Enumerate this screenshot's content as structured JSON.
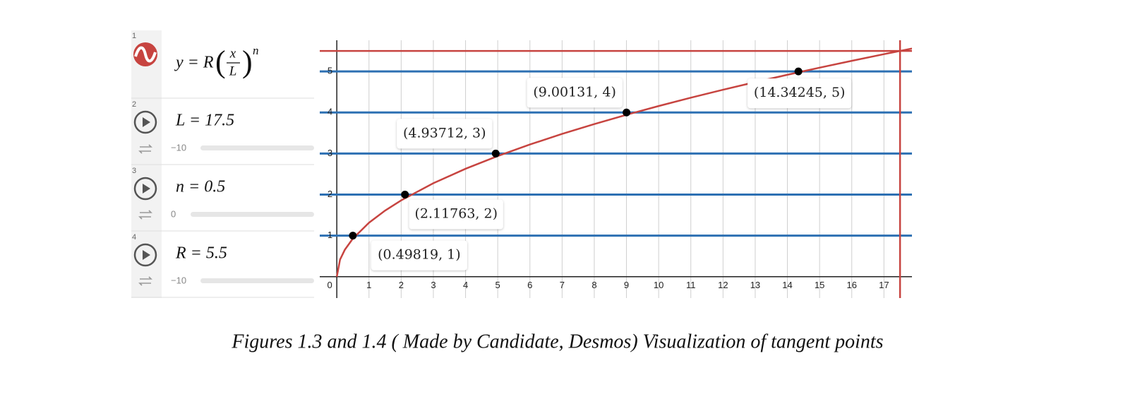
{
  "sidebar": {
    "expressions": [
      {
        "number": "1",
        "lhs": "y = R",
        "open": "(",
        "numerator": "x",
        "denominator": "L",
        "close": ")",
        "exponent": "n"
      },
      {
        "number": "2",
        "text": "L = 17.5",
        "slider_min": "−10"
      },
      {
        "number": "3",
        "text": "n = 0.5",
        "slider_min": "0"
      },
      {
        "number": "4",
        "text": "R = 5.5",
        "slider_min": "−10"
      }
    ]
  },
  "chart_data": {
    "type": "line",
    "xlim": [
      -0.53,
      17.87
    ],
    "ylim": [
      -0.52,
      5.76
    ],
    "xticks": [
      0,
      1,
      2,
      3,
      4,
      5,
      6,
      7,
      8,
      9,
      10,
      11,
      12,
      13,
      14,
      15,
      16,
      17
    ],
    "yticks": [
      1,
      2,
      3,
      4,
      5
    ],
    "grid": true,
    "series": [
      {
        "color": "#c74440",
        "x": [
          0,
          0.1,
          0.25,
          0.5,
          1,
          1.5,
          2,
          3,
          4,
          5,
          6,
          7,
          8,
          9,
          10,
          11,
          12,
          13,
          14,
          15,
          16,
          17,
          17.87
        ],
        "values": [
          0,
          0.4158,
          0.6574,
          0.9297,
          1.3148,
          1.6103,
          1.8594,
          2.2773,
          2.6296,
          2.94,
          3.2206,
          3.4786,
          3.7188,
          3.9444,
          4.1578,
          4.3607,
          4.5546,
          4.7406,
          4.9195,
          5.0922,
          5.2592,
          5.4209,
          5.558
        ]
      }
    ],
    "hlines": {
      "color": "#2d70b3",
      "values": [
        1,
        2,
        3,
        4,
        5
      ]
    },
    "reference_lines": [
      {
        "axis": "y",
        "value": 5.5,
        "color": "#c74440"
      },
      {
        "axis": "x",
        "value": 17.5,
        "color": "#c74440"
      }
    ],
    "points": {
      "color": "#000000",
      "x": [
        0.49819,
        2.11763,
        4.93712,
        9.00131,
        14.34245
      ],
      "values": [
        1,
        2,
        3,
        4,
        5
      ],
      "value_labels": [
        "(0.49819, 1)",
        "(2.11763, 2)",
        "(4.93712, 3)",
        "(9.00131, 4)",
        "(14.34245, 5)"
      ]
    }
  },
  "caption": "Figures 1.3 and 1.4 ( Made by Candidate, Desmos) Visualization of tangent points"
}
